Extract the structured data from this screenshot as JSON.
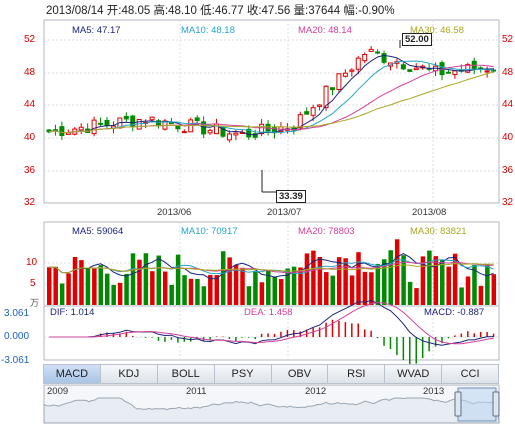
{
  "header": {
    "date": "2013/08/14",
    "open_label": "开:",
    "open": "48.05",
    "high_label": "高:",
    "high": "48.10",
    "low_label": "低:",
    "low": "46.77",
    "close_label": "收:",
    "close": "47.56",
    "vol_label": "量:",
    "vol": "37644",
    "chg_label": "幅:",
    "chg": "-0.90%"
  },
  "price_legend": {
    "ma5": "MA5: 47.17",
    "ma10": "MA10: 48.18",
    "ma20": "MA20: 48.14",
    "ma30": "MA30: 46.58"
  },
  "price_axis": [
    "52",
    "48",
    "44",
    "40",
    "36",
    "32"
  ],
  "price_highlights": {
    "high": "52.00",
    "low": "33.39"
  },
  "date_axis": [
    "2013/06",
    "2013/07",
    "2013/08"
  ],
  "volume_legend": {
    "ma5": "MA5: 59064",
    "ma10": "MA10: 70917",
    "ma20": "MA20: 78803",
    "ma30": "MA30: 83821"
  },
  "volume_axis": [
    "10",
    "5"
  ],
  "volume_unit": "万",
  "macd_legend": {
    "dif": "DIF: 1.014",
    "dea": "DEA: 1.458",
    "macd": "MACD: -0.887"
  },
  "macd_axis": [
    "3.061",
    "0.000",
    "-3.061"
  ],
  "tabs": [
    "MACD",
    "KDJ",
    "BOLL",
    "PSY",
    "OBV",
    "RSI",
    "WVAD",
    "CCI"
  ],
  "active_tab": "MACD",
  "navigator_years": [
    "2009",
    "2011",
    "2012",
    "2013"
  ],
  "colors": {
    "up": "#e00000",
    "down": "#008a00",
    "ma5": "#1a237e",
    "ma10": "#26a5c9",
    "ma20": "#d4409a",
    "ma30": "#a8a820"
  }
}
